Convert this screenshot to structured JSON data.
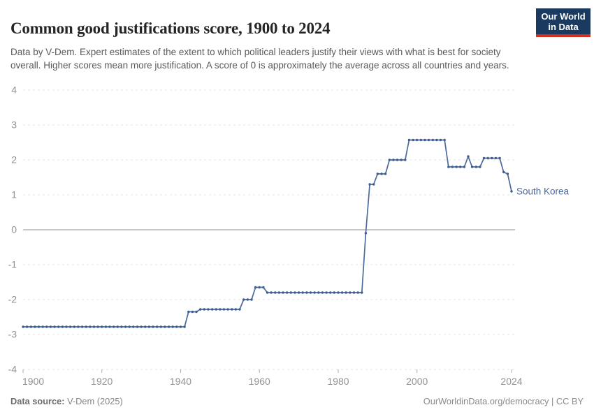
{
  "header": {
    "title": "Common good justifications score, 1900 to 2024",
    "logo": {
      "line1": "Our World",
      "line2": "in Data"
    }
  },
  "subtitle": "Data by V-Dem. Expert estimates of the extent to which political leaders justify their views with what is best for society overall. Higher scores mean more justification. A score of 0 is approximately the average across all countries and years.",
  "chart_data": {
    "type": "line",
    "title": "Common good justifications score, 1900 to 2024",
    "entity_label": "South Korea",
    "xlabel": "",
    "ylabel": "",
    "xlim": [
      1900,
      2024
    ],
    "ylim": [
      -4,
      4
    ],
    "x_ticks": [
      1900,
      1920,
      1940,
      1960,
      1980,
      2000,
      2024
    ],
    "y_ticks": [
      4,
      3,
      2,
      1,
      0,
      -1,
      -2,
      -3,
      -4
    ],
    "grid": true,
    "legend_position": "end-of-line-label",
    "series": [
      {
        "name": "South Korea",
        "segments": [
          {
            "from": 1900,
            "to": 1941,
            "value": -2.78
          },
          {
            "from": 1942,
            "to": 1944,
            "value": -2.35
          },
          {
            "from": 1945,
            "to": 1955,
            "value": -2.28
          },
          {
            "from": 1956,
            "to": 1958,
            "value": -2.0
          },
          {
            "from": 1959,
            "to": 1961,
            "value": -1.65
          },
          {
            "from": 1962,
            "to": 1986,
            "value": -1.8
          },
          {
            "from": 1987,
            "to": 1987,
            "value": -0.1
          },
          {
            "from": 1988,
            "to": 1989,
            "value": 1.3
          },
          {
            "from": 1990,
            "to": 1992,
            "value": 1.6
          },
          {
            "from": 1993,
            "to": 1997,
            "value": 2.0
          },
          {
            "from": 1998,
            "to": 2007,
            "value": 2.57
          },
          {
            "from": 2008,
            "to": 2012,
            "value": 1.8
          },
          {
            "from": 2013,
            "to": 2013,
            "value": 2.1
          },
          {
            "from": 2014,
            "to": 2016,
            "value": 1.8
          },
          {
            "from": 2017,
            "to": 2021,
            "value": 2.05
          },
          {
            "from": 2022,
            "to": 2022,
            "value": 1.65
          },
          {
            "from": 2023,
            "to": 2023,
            "value": 1.6
          },
          {
            "from": 2024,
            "to": 2024,
            "value": 1.1
          }
        ]
      }
    ],
    "colors": {
      "line": "#4c6a9c",
      "dot": "#3d5c8f",
      "entity_label": "#4c6a9c",
      "grid": "#e0e0e0",
      "zero_line": "#a3a3a3",
      "axis_text": "#929292",
      "tick_mark": "#adadad"
    }
  },
  "footer": {
    "source_label": "Data source:",
    "source_value": " V-Dem (2025)",
    "right_text": "OurWorldinData.org/democracy | CC BY"
  }
}
